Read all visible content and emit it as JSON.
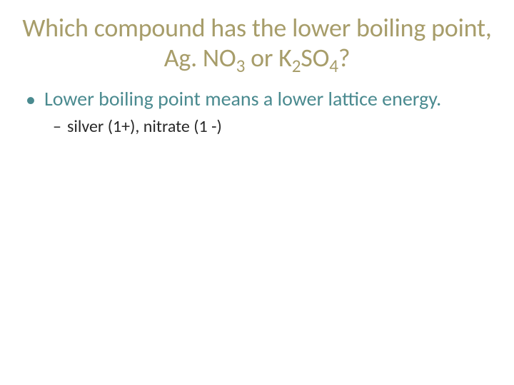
{
  "title": {
    "prefix": "Which compound has the lower boiling point, Ag. NO",
    "sub1": "3",
    "mid": " or K",
    "sub2": "2",
    "mid2": "SO",
    "sub3": "4",
    "suffix": "?"
  },
  "bullets": {
    "level1": {
      "text": "Lower boiling point means a lower lattice energy."
    },
    "level2": {
      "text": "silver (1+), nitrate (1 -)"
    }
  },
  "colors": {
    "title": "#a79d6a",
    "bullet1": "#4a8a8f",
    "bullet2": "#282828",
    "background": "#ffffff"
  },
  "typography": {
    "title_fontsize": 36,
    "bullet1_fontsize": 28,
    "bullet2_fontsize": 24,
    "font_family": "Calibri"
  }
}
